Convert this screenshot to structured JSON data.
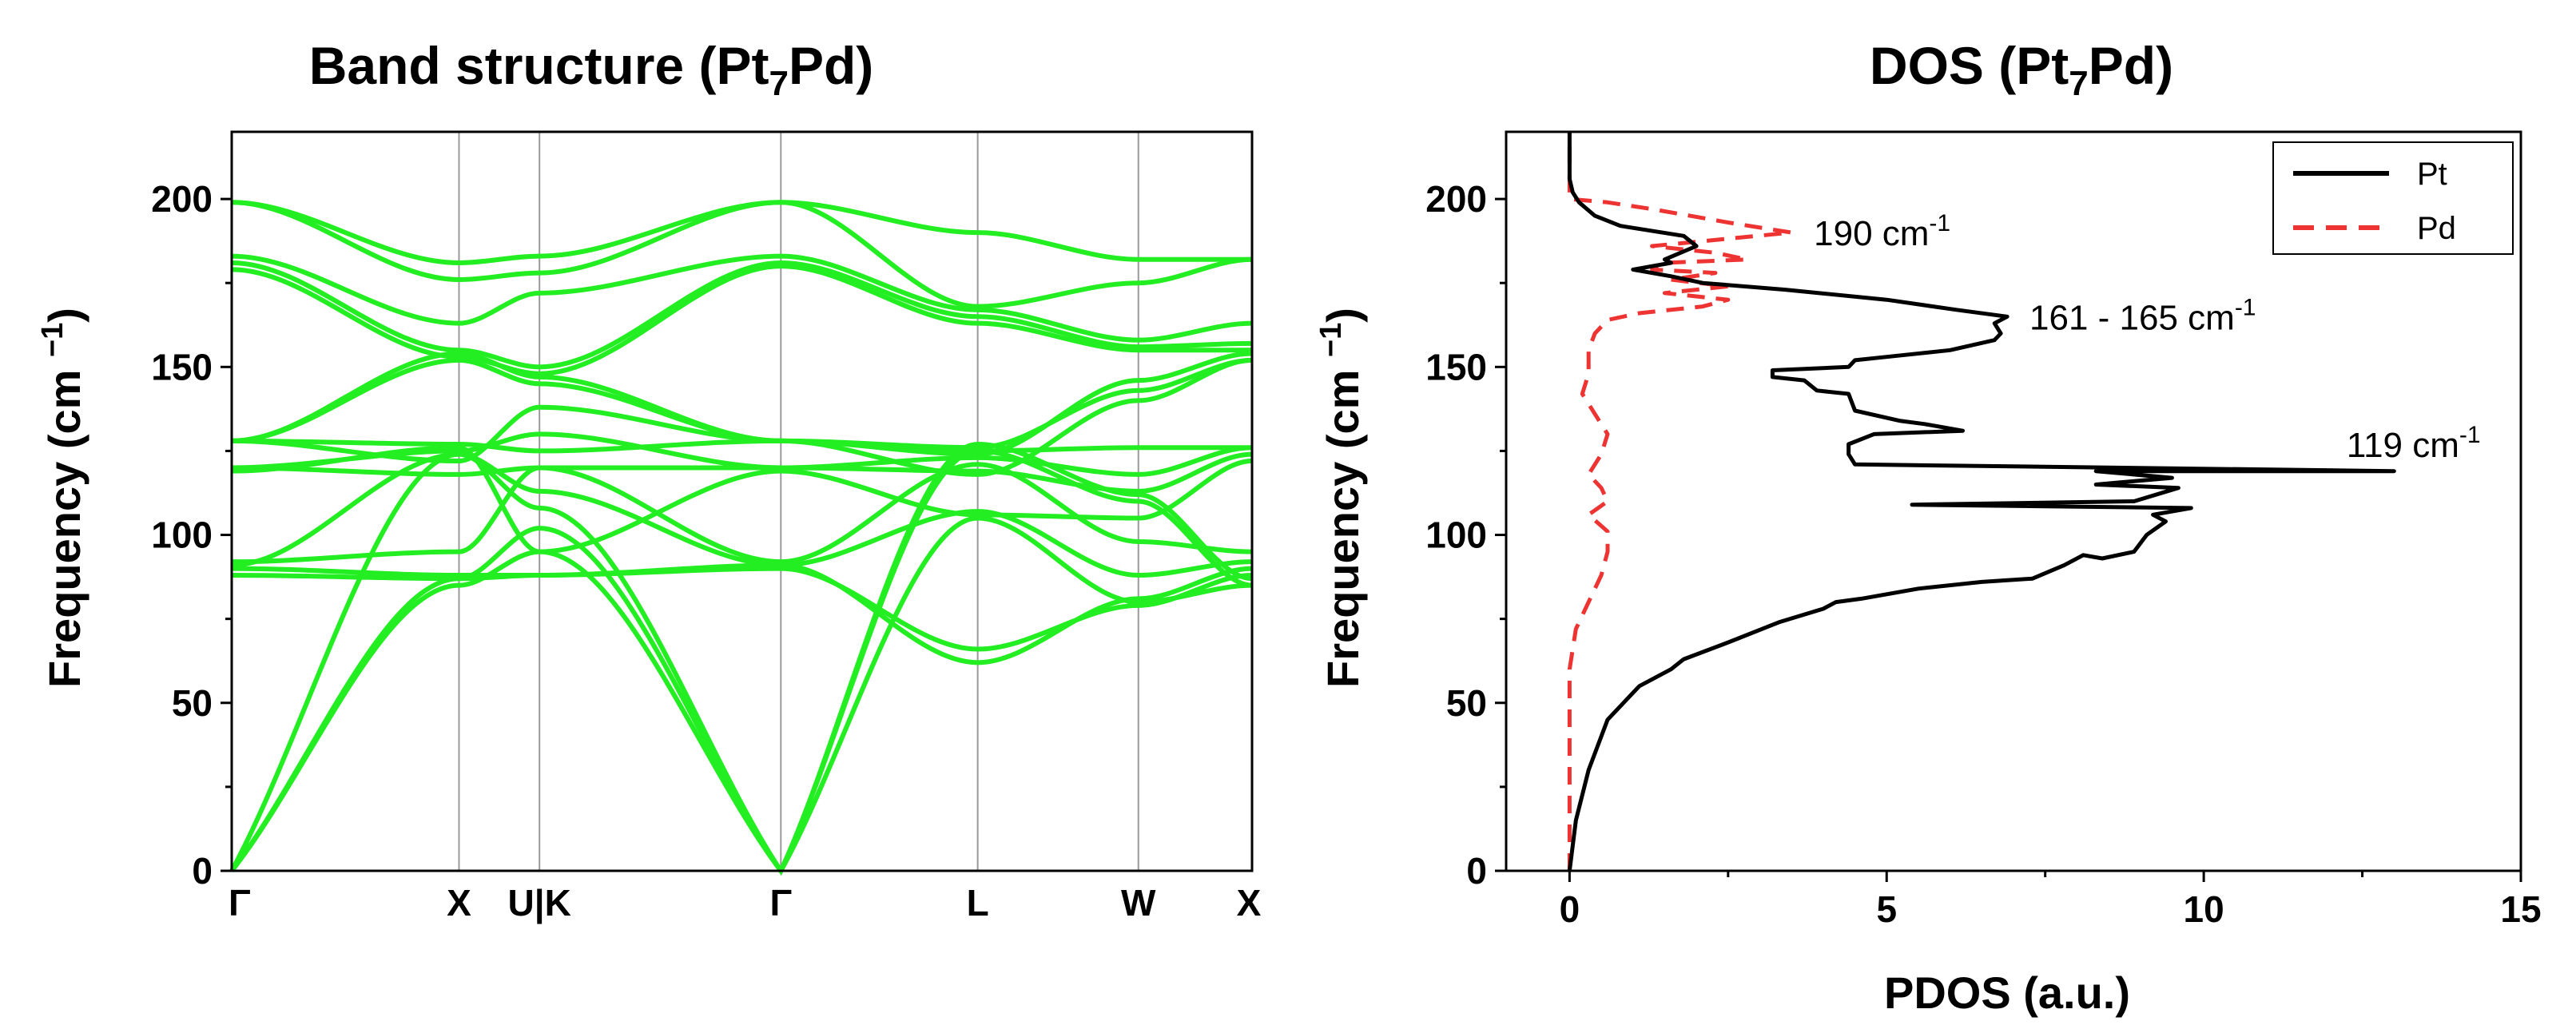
{
  "chart_data": [
    {
      "type": "line",
      "title": "Band structure (Pt7Pd)",
      "title_parts": {
        "pre": "Band structure (Pt",
        "sub": "7",
        "post": "Pd)"
      },
      "ylabel": "Frequency (cm −1)",
      "ylabel_parts": {
        "pre": "Frequency (cm ",
        "sup": "−1",
        "post": ")"
      },
      "ylim": [
        0,
        220
      ],
      "yticks": [
        0,
        50,
        100,
        150,
        200
      ],
      "xlabel": "",
      "kpath": [
        {
          "label": "Γ",
          "x": 0.0
        },
        {
          "label": "X",
          "x": 1.0
        },
        {
          "label": "U|K",
          "x": 1.354
        },
        {
          "label": "Γ",
          "x": 2.416
        },
        {
          "label": "L",
          "x": 3.282
        },
        {
          "label": "W",
          "x": 3.989
        },
        {
          "label": "X",
          "x": 4.489
        }
      ],
      "line_color": "#22ee22",
      "grid": false,
      "series": [
        {
          "values": [
            [
              0,
              0
            ],
            [
              1,
              85
            ],
            [
              1.354,
              95
            ],
            [
              2.416,
              0
            ],
            [
              3.282,
              125
            ],
            [
              3.989,
              110
            ],
            [
              4.489,
              85
            ]
          ]
        },
        {
          "values": [
            [
              0,
              0
            ],
            [
              1,
              87
            ],
            [
              1.354,
              102
            ],
            [
              2.416,
              0
            ],
            [
              3.282,
              127
            ],
            [
              3.989,
              112
            ],
            [
              4.489,
              87
            ]
          ]
        },
        {
          "values": [
            [
              0,
              0
            ],
            [
              1,
              124
            ],
            [
              1.354,
              108
            ],
            [
              2.416,
              0
            ],
            [
              3.282,
              105
            ],
            [
              3.989,
              80
            ],
            [
              4.489,
              85
            ]
          ]
        },
        {
          "values": [
            [
              0,
              88
            ],
            [
              1,
              87
            ],
            [
              1.354,
              88
            ],
            [
              2.416,
              90
            ],
            [
              3.282,
              66
            ],
            [
              3.989,
              79
            ],
            [
              4.489,
              88
            ]
          ]
        },
        {
          "values": [
            [
              0,
              90
            ],
            [
              1,
              88
            ],
            [
              1.354,
              88
            ],
            [
              2.416,
              91
            ],
            [
              3.282,
              62
            ],
            [
              3.989,
              81
            ],
            [
              4.489,
              90
            ]
          ]
        },
        {
          "values": [
            [
              0,
              91
            ],
            [
              1,
              124
            ],
            [
              1.354,
              113
            ],
            [
              2.416,
              91
            ],
            [
              3.282,
              107
            ],
            [
              3.989,
              88
            ],
            [
              4.489,
              92
            ]
          ]
        },
        {
          "values": [
            [
              0,
              92
            ],
            [
              1,
              95
            ],
            [
              1.354,
              120
            ],
            [
              2.416,
              92
            ],
            [
              3.282,
              121
            ],
            [
              3.989,
              98
            ],
            [
              4.489,
              95
            ]
          ]
        },
        {
          "values": [
            [
              0,
              119
            ],
            [
              1,
              126
            ],
            [
              1.354,
              95
            ],
            [
              2.416,
              119
            ],
            [
              3.282,
              106
            ],
            [
              3.989,
              105
            ],
            [
              4.489,
              122
            ]
          ]
        },
        {
          "values": [
            [
              0,
              120
            ],
            [
              1,
              118
            ],
            [
              1.354,
              120
            ],
            [
              2.416,
              120
            ],
            [
              3.282,
              119
            ],
            [
              3.989,
              113
            ],
            [
              4.489,
              124
            ]
          ]
        },
        {
          "values": [
            [
              0,
              120
            ],
            [
              1,
              125
            ],
            [
              1.354,
              130
            ],
            [
              2.416,
              120
            ],
            [
              3.282,
              123
            ],
            [
              3.989,
              118
            ],
            [
              4.489,
              126
            ]
          ]
        },
        {
          "values": [
            [
              0,
              128
            ],
            [
              1,
              122
            ],
            [
              1.354,
              138
            ],
            [
              2.416,
              128
            ],
            [
              3.282,
              125
            ],
            [
              3.989,
              126
            ],
            [
              4.489,
              126
            ]
          ]
        },
        {
          "values": [
            [
              0,
              128
            ],
            [
              1,
              127
            ],
            [
              1.354,
              125
            ],
            [
              2.416,
              128
            ],
            [
              3.282,
              118
            ],
            [
              3.989,
              140
            ],
            [
              4.489,
              152
            ]
          ]
        },
        {
          "values": [
            [
              0,
              128
            ],
            [
              1,
              152
            ],
            [
              1.354,
              145
            ],
            [
              2.416,
              128
            ],
            [
              3.282,
              126
            ],
            [
              3.989,
              143
            ],
            [
              4.489,
              152
            ]
          ]
        },
        {
          "values": [
            [
              0,
              128
            ],
            [
              1,
              154
            ],
            [
              1.354,
              147
            ],
            [
              2.416,
              128
            ],
            [
              3.282,
              124
            ],
            [
              3.989,
              146
            ],
            [
              4.489,
              154
            ]
          ]
        },
        {
          "values": [
            [
              0,
              179
            ],
            [
              1,
              153
            ],
            [
              1.354,
              148
            ],
            [
              2.416,
              180
            ],
            [
              3.282,
              163
            ],
            [
              3.989,
              155
            ],
            [
              4.489,
              155
            ]
          ]
        },
        {
          "values": [
            [
              0,
              181
            ],
            [
              1,
              155
            ],
            [
              1.354,
              150
            ],
            [
              2.416,
              181
            ],
            [
              3.282,
              165
            ],
            [
              3.989,
              156
            ],
            [
              4.489,
              157
            ]
          ]
        },
        {
          "values": [
            [
              0,
              183
            ],
            [
              1,
              163
            ],
            [
              1.354,
              172
            ],
            [
              2.416,
              183
            ],
            [
              3.282,
              167
            ],
            [
              3.989,
              158
            ],
            [
              4.489,
              163
            ]
          ]
        },
        {
          "values": [
            [
              0,
              199
            ],
            [
              1,
              176
            ],
            [
              1.354,
              178
            ],
            [
              2.416,
              199
            ],
            [
              3.282,
              168
            ],
            [
              3.989,
              175
            ],
            [
              4.489,
              182
            ]
          ]
        },
        {
          "values": [
            [
              0,
              199
            ],
            [
              1,
              181
            ],
            [
              1.354,
              183
            ],
            [
              2.416,
              199
            ],
            [
              3.282,
              190
            ],
            [
              3.989,
              182
            ],
            [
              4.489,
              182
            ]
          ]
        }
      ]
    },
    {
      "type": "line",
      "title": "DOS (Pt7Pd)",
      "title_parts": {
        "pre": "DOS (Pt",
        "sub": "7",
        "post": "Pd)"
      },
      "xlabel": "PDOS (a.u.)",
      "ylabel": "Frequency (cm −1)",
      "ylabel_parts": {
        "pre": "Frequency (cm ",
        "sup": "−1",
        "post": ")"
      },
      "xlim": [
        -1,
        15
      ],
      "ylim": [
        0,
        220
      ],
      "xticks": [
        0,
        5,
        10,
        15
      ],
      "yticks": [
        0,
        50,
        100,
        150,
        200
      ],
      "grid": false,
      "legend": {
        "position": "top-right",
        "entries": [
          "Pt",
          "Pd"
        ]
      },
      "series": [
        {
          "name": "Pt",
          "color": "#000000",
          "dash": "solid",
          "points": [
            [
              0,
              0
            ],
            [
              0.1,
              15
            ],
            [
              0.3,
              30
            ],
            [
              0.6,
              45
            ],
            [
              1.1,
              55
            ],
            [
              1.6,
              60
            ],
            [
              1.8,
              63
            ],
            [
              2.5,
              68
            ],
            [
              3.3,
              74
            ],
            [
              4,
              78
            ],
            [
              4.2,
              80
            ],
            [
              4.6,
              81
            ],
            [
              5.5,
              84
            ],
            [
              6.5,
              86
            ],
            [
              7.3,
              87
            ],
            [
              7.8,
              91
            ],
            [
              8.1,
              94
            ],
            [
              8.4,
              93
            ],
            [
              8.9,
              95
            ],
            [
              9.1,
              100
            ],
            [
              9.4,
              104
            ],
            [
              9.2,
              106
            ],
            [
              9.8,
              108
            ],
            [
              5.4,
              109
            ],
            [
              8.9,
              110
            ],
            [
              9.6,
              114
            ],
            [
              8.3,
              115
            ],
            [
              9.5,
              117
            ],
            [
              8.3,
              119
            ],
            [
              13,
              119
            ],
            [
              4.5,
              121
            ],
            [
              4.4,
              124
            ],
            [
              4.4,
              127
            ],
            [
              4.8,
              130
            ],
            [
              6.2,
              131
            ],
            [
              5.6,
              133
            ],
            [
              5.2,
              134
            ],
            [
              4.5,
              137
            ],
            [
              4.4,
              142
            ],
            [
              3.9,
              143
            ],
            [
              3.7,
              146
            ],
            [
              3.2,
              147
            ],
            [
              3.2,
              149
            ],
            [
              4.4,
              150
            ],
            [
              4.5,
              152
            ],
            [
              5,
              153
            ],
            [
              6,
              155
            ],
            [
              6.7,
              158
            ],
            [
              6.8,
              160
            ],
            [
              6.7,
              163
            ],
            [
              6.9,
              165
            ],
            [
              6.1,
              167
            ],
            [
              5,
              170
            ],
            [
              3.4,
              173
            ],
            [
              2.1,
              175
            ],
            [
              1.6,
              177
            ],
            [
              1,
              179
            ],
            [
              1.6,
              181
            ],
            [
              1.5,
              182
            ],
            [
              2,
              186
            ],
            [
              1.8,
              189
            ],
            [
              0.8,
              192
            ],
            [
              0.4,
              195
            ],
            [
              0.15,
              199
            ],
            [
              0.05,
              202
            ],
            [
              0,
              206
            ],
            [
              0,
              220
            ]
          ]
        },
        {
          "name": "Pd",
          "color": "#ee3333",
          "dash": "dashed",
          "points": [
            [
              0,
              0
            ],
            [
              0,
              20
            ],
            [
              0,
              45
            ],
            [
              0,
              60
            ],
            [
              0.1,
              72
            ],
            [
              0.3,
              80
            ],
            [
              0.5,
              88
            ],
            [
              0.6,
              95
            ],
            [
              0.6,
              101
            ],
            [
              0.3,
              106
            ],
            [
              0.6,
              110
            ],
            [
              0.5,
              114
            ],
            [
              0.3,
              118
            ],
            [
              0.5,
              124
            ],
            [
              0.6,
              130
            ],
            [
              0.4,
              136
            ],
            [
              0.2,
              142
            ],
            [
              0.3,
              148
            ],
            [
              0.3,
              155
            ],
            [
              0.4,
              160
            ],
            [
              0.6,
              164
            ],
            [
              1.1,
              166
            ],
            [
              2.1,
              168
            ],
            [
              2.5,
              170
            ],
            [
              1.5,
              172
            ],
            [
              2.5,
              174
            ],
            [
              1.6,
              176
            ],
            [
              2.3,
              178
            ],
            [
              1.3,
              179
            ],
            [
              1.5,
              181
            ],
            [
              2.8,
              182
            ],
            [
              2.3,
              184
            ],
            [
              1.3,
              186
            ],
            [
              3.5,
              190
            ],
            [
              2.5,
              193
            ],
            [
              1.9,
              195
            ],
            [
              1.3,
              197
            ],
            [
              0.6,
              199
            ],
            [
              0,
              200
            ],
            [
              0,
              220
            ]
          ]
        }
      ],
      "annotations": [
        {
          "text": "190 cm-1",
          "base": "190 cm",
          "sup": "-1",
          "x": 3.6,
          "y": 190
        },
        {
          "text": "161 - 165 cm-1",
          "base": "161 - 165 cm",
          "sup": "-1",
          "x": 7.0,
          "y": 165
        },
        {
          "text": "119 cm-1",
          "base": "119 cm",
          "sup": "-1",
          "x": 12.0,
          "y": 127
        }
      ]
    }
  ]
}
